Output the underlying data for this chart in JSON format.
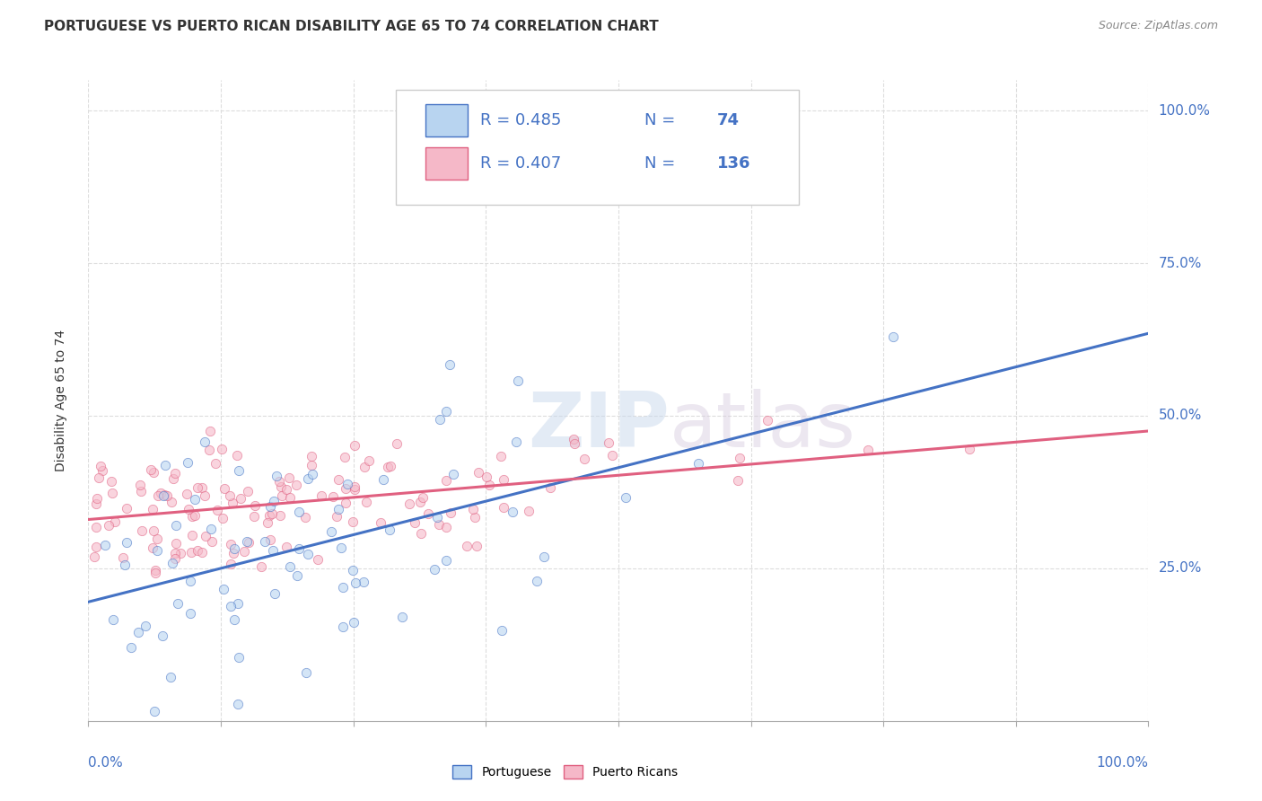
{
  "title": "PORTUGUESE VS PUERTO RICAN DISABILITY AGE 65 TO 74 CORRELATION CHART",
  "source": "Source: ZipAtlas.com",
  "ylabel": "Disability Age 65 to 74",
  "legend_blue_label": "Portuguese",
  "legend_pink_label": "Puerto Ricans",
  "blue_fill": "#b8d4f0",
  "pink_fill": "#f5b8c8",
  "blue_edge": "#4472c4",
  "pink_edge": "#e06080",
  "blue_line": "#4472c4",
  "pink_line": "#e06080",
  "R_blue": 0.485,
  "N_blue": 74,
  "R_pink": 0.407,
  "N_pink": 136,
  "seed_blue": 42,
  "seed_pink": 7,
  "blue_intercept": 0.195,
  "blue_slope": 0.44,
  "pink_intercept": 0.33,
  "pink_slope": 0.145,
  "xmin": 0.0,
  "xmax": 1.0,
  "ymin": 0.0,
  "ymax": 1.05,
  "background": "#ffffff",
  "grid_color": "#dddddd",
  "title_fs": 11,
  "axis_label_fs": 10,
  "tick_fs": 11,
  "source_fs": 9,
  "legend_fs": 13,
  "marker_size": 55,
  "marker_alpha": 0.6,
  "right_yticks": [
    0.25,
    0.5,
    0.75,
    1.0
  ],
  "right_ytick_labels": [
    "25.0%",
    "50.0%",
    "75.0%",
    "100.0%"
  ],
  "legend_color": "#4472c4",
  "legend_text_dark": "#333333"
}
